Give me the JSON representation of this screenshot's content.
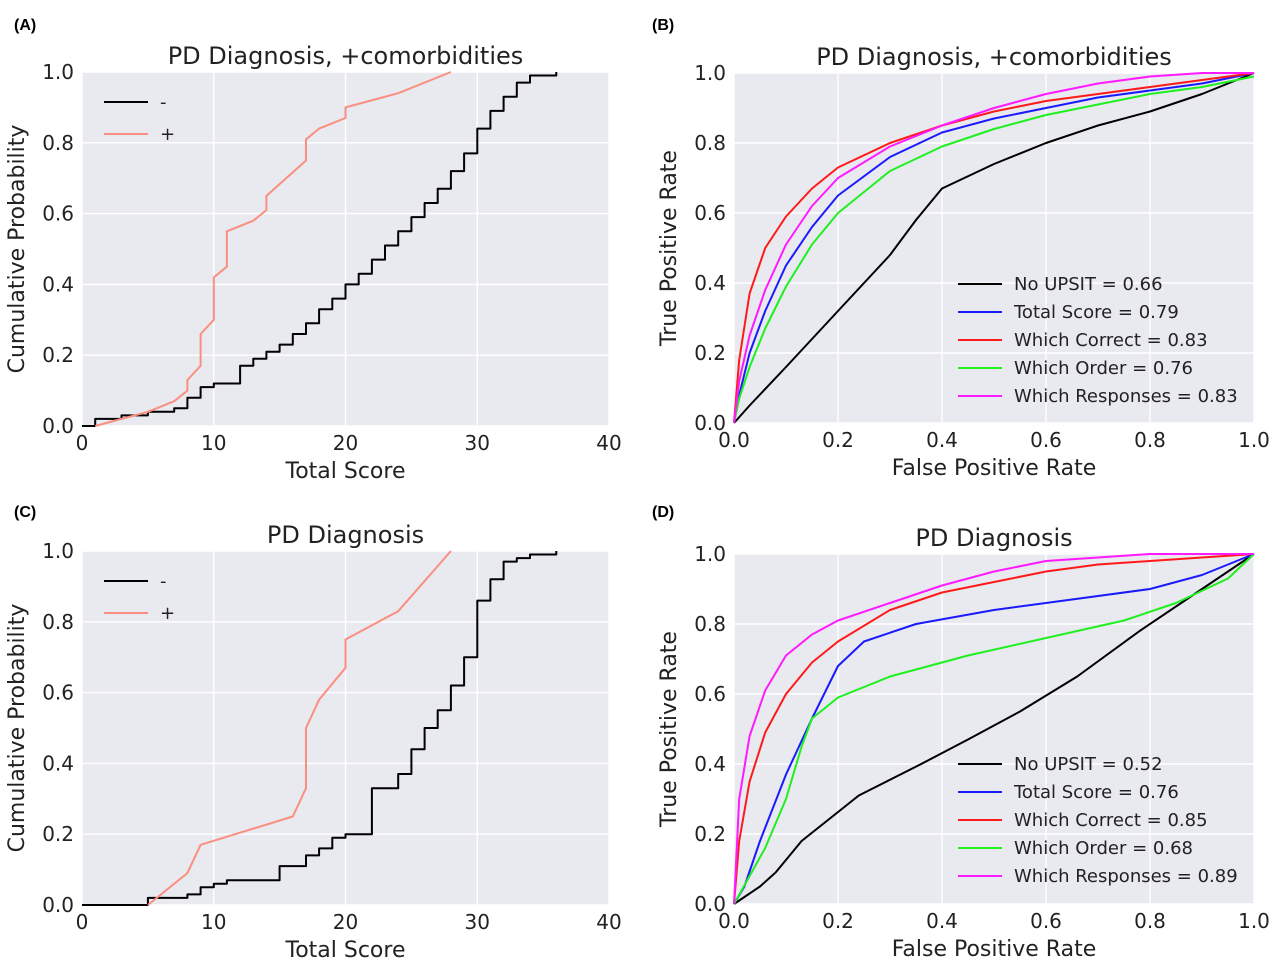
{
  "chart_data": [
    {
      "panel": "(A)",
      "type": "line",
      "step": true,
      "title": "PD Diagnosis, +comorbidities",
      "xlabel": "Total Score",
      "ylabel": "Cumulative Probability",
      "xlim": [
        0,
        40
      ],
      "ylim": [
        0,
        1
      ],
      "xticks": [
        0,
        10,
        20,
        30,
        40
      ],
      "yticks": [
        0.0,
        0.2,
        0.4,
        0.6,
        0.8,
        1.0
      ],
      "xtick_labels": [
        "0",
        "10",
        "20",
        "30",
        "40"
      ],
      "ytick_labels": [
        "0.0",
        "0.2",
        "0.4",
        "0.6",
        "0.8",
        "1.0"
      ],
      "grid": true,
      "legend": "top-left",
      "series": [
        {
          "name": "-",
          "color": "#000000",
          "step": true,
          "x": [
            0,
            1,
            3,
            5,
            7,
            8,
            9,
            10,
            12,
            12,
            13,
            14,
            15,
            16,
            17,
            18,
            19,
            20,
            21,
            22,
            23,
            24,
            25,
            26,
            27,
            28,
            29,
            30,
            31,
            32,
            33,
            34,
            36
          ],
          "y": [
            0,
            0.02,
            0.03,
            0.04,
            0.05,
            0.08,
            0.11,
            0.12,
            0.12,
            0.17,
            0.19,
            0.21,
            0.23,
            0.26,
            0.29,
            0.33,
            0.36,
            0.4,
            0.43,
            0.47,
            0.51,
            0.55,
            0.59,
            0.63,
            0.67,
            0.72,
            0.77,
            0.84,
            0.89,
            0.93,
            0.97,
            0.99,
            1.0
          ]
        },
        {
          "name": "+",
          "color": "#fa8f80",
          "step": false,
          "x": [
            1,
            3,
            5,
            7,
            8,
            8,
            9,
            9,
            10,
            10,
            11,
            11,
            13,
            14,
            14,
            17,
            17,
            18,
            20,
            20,
            24,
            28
          ],
          "y": [
            0.0,
            0.02,
            0.04,
            0.07,
            0.1,
            0.13,
            0.17,
            0.26,
            0.3,
            0.42,
            0.45,
            0.55,
            0.58,
            0.61,
            0.65,
            0.75,
            0.81,
            0.84,
            0.87,
            0.9,
            0.94,
            1.0
          ]
        }
      ]
    },
    {
      "panel": "(B)",
      "type": "line",
      "title": "PD Diagnosis, +comorbidities",
      "xlabel": "False Positive Rate",
      "ylabel": "True Positive Rate",
      "xlim": [
        0,
        1
      ],
      "ylim": [
        0,
        1
      ],
      "xticks": [
        0.0,
        0.2,
        0.4,
        0.6,
        0.8,
        1.0
      ],
      "yticks": [
        0.0,
        0.2,
        0.4,
        0.6,
        0.8,
        1.0
      ],
      "xtick_labels": [
        "0.0",
        "0.2",
        "0.4",
        "0.6",
        "0.8",
        "1.0"
      ],
      "ytick_labels": [
        "0.0",
        "0.2",
        "0.4",
        "0.6",
        "0.8",
        "1.0"
      ],
      "grid": true,
      "legend": "bottom-right",
      "series": [
        {
          "name": "No UPSIT = 0.66",
          "color": "#000000",
          "x": [
            0,
            0.03,
            0.1,
            0.2,
            0.3,
            0.35,
            0.4,
            0.5,
            0.6,
            0.7,
            0.8,
            0.9,
            1.0
          ],
          "y": [
            0,
            0.05,
            0.16,
            0.32,
            0.48,
            0.58,
            0.67,
            0.74,
            0.8,
            0.85,
            0.89,
            0.94,
            1.0
          ]
        },
        {
          "name": "Total Score = 0.79",
          "color": "#1a1aff",
          "x": [
            0,
            0.01,
            0.03,
            0.06,
            0.1,
            0.15,
            0.2,
            0.3,
            0.4,
            0.5,
            0.6,
            0.7,
            0.8,
            0.9,
            1.0
          ],
          "y": [
            0,
            0.08,
            0.2,
            0.32,
            0.45,
            0.56,
            0.65,
            0.76,
            0.83,
            0.87,
            0.9,
            0.93,
            0.95,
            0.97,
            1.0
          ]
        },
        {
          "name": "Which Correct = 0.83",
          "color": "#ff1a1a",
          "x": [
            0,
            0.01,
            0.03,
            0.06,
            0.1,
            0.15,
            0.2,
            0.3,
            0.4,
            0.5,
            0.6,
            0.7,
            0.8,
            0.9,
            1.0
          ],
          "y": [
            0,
            0.18,
            0.37,
            0.5,
            0.59,
            0.67,
            0.73,
            0.8,
            0.85,
            0.89,
            0.92,
            0.94,
            0.96,
            0.98,
            1.0
          ]
        },
        {
          "name": "Which Order = 0.76",
          "color": "#1ff01f",
          "x": [
            0,
            0.01,
            0.03,
            0.06,
            0.1,
            0.15,
            0.2,
            0.3,
            0.4,
            0.5,
            0.6,
            0.7,
            0.8,
            0.9,
            1.0
          ],
          "y": [
            0,
            0.07,
            0.16,
            0.27,
            0.39,
            0.51,
            0.6,
            0.72,
            0.79,
            0.84,
            0.88,
            0.91,
            0.94,
            0.96,
            0.99
          ]
        },
        {
          "name": "Which Responses = 0.83",
          "color": "#ff1aff",
          "x": [
            0,
            0.01,
            0.03,
            0.06,
            0.1,
            0.15,
            0.2,
            0.3,
            0.4,
            0.5,
            0.6,
            0.7,
            0.8,
            0.9,
            1.0
          ],
          "y": [
            0,
            0.12,
            0.25,
            0.38,
            0.51,
            0.62,
            0.7,
            0.79,
            0.85,
            0.9,
            0.94,
            0.97,
            0.99,
            1.0,
            1.0
          ]
        }
      ]
    },
    {
      "panel": "(C)",
      "type": "line",
      "step": true,
      "title": "PD Diagnosis",
      "xlabel": "Total Score",
      "ylabel": "Cumulative Probability",
      "xlim": [
        0,
        40
      ],
      "ylim": [
        0,
        1
      ],
      "xticks": [
        0,
        10,
        20,
        30,
        40
      ],
      "yticks": [
        0.0,
        0.2,
        0.4,
        0.6,
        0.8,
        1.0
      ],
      "xtick_labels": [
        "0",
        "10",
        "20",
        "30",
        "40"
      ],
      "ytick_labels": [
        "0.0",
        "0.2",
        "0.4",
        "0.6",
        "0.8",
        "1.0"
      ],
      "grid": true,
      "legend": "top-left",
      "series": [
        {
          "name": "-",
          "color": "#000000",
          "step": true,
          "x": [
            0,
            1,
            5,
            8,
            9,
            10,
            11,
            15,
            15,
            17,
            18,
            19,
            20,
            22,
            22,
            24,
            25,
            26,
            27,
            28,
            29,
            30,
            30,
            31,
            32,
            33,
            34,
            36
          ],
          "y": [
            0,
            0.0,
            0.02,
            0.03,
            0.05,
            0.06,
            0.07,
            0.08,
            0.11,
            0.14,
            0.16,
            0.19,
            0.2,
            0.3,
            0.33,
            0.37,
            0.44,
            0.5,
            0.55,
            0.62,
            0.7,
            0.78,
            0.86,
            0.92,
            0.97,
            0.98,
            0.99,
            1.0
          ]
        },
        {
          "name": "+",
          "color": "#fa8f80",
          "step": false,
          "x": [
            5,
            8,
            9,
            16,
            17,
            17,
            18,
            20,
            20,
            24,
            28
          ],
          "y": [
            0.0,
            0.09,
            0.17,
            0.25,
            0.33,
            0.5,
            0.58,
            0.67,
            0.75,
            0.83,
            1.0
          ]
        }
      ]
    },
    {
      "panel": "(D)",
      "type": "line",
      "title": "PD Diagnosis",
      "xlabel": "False Positive Rate",
      "ylabel": "True Positive Rate",
      "xlim": [
        0,
        1
      ],
      "ylim": [
        0,
        1
      ],
      "xticks": [
        0.0,
        0.2,
        0.4,
        0.6,
        0.8,
        1.0
      ],
      "yticks": [
        0.0,
        0.2,
        0.4,
        0.6,
        0.8,
        1.0
      ],
      "xtick_labels": [
        "0.0",
        "0.2",
        "0.4",
        "0.6",
        "0.8",
        "1.0"
      ],
      "ytick_labels": [
        "0.0",
        "0.2",
        "0.4",
        "0.6",
        "0.8",
        "1.0"
      ],
      "grid": true,
      "legend": "bottom-right",
      "series": [
        {
          "name": "No UPSIT = 0.52",
          "color": "#000000",
          "x": [
            0,
            0.02,
            0.05,
            0.08,
            0.13,
            0.24,
            0.36,
            0.45,
            0.55,
            0.66,
            0.78,
            0.9,
            1.0
          ],
          "y": [
            0,
            0.02,
            0.05,
            0.09,
            0.18,
            0.31,
            0.4,
            0.47,
            0.55,
            0.65,
            0.78,
            0.9,
            1.0
          ]
        },
        {
          "name": "Total Score = 0.76",
          "color": "#1a1aff",
          "x": [
            0,
            0.02,
            0.05,
            0.1,
            0.15,
            0.2,
            0.25,
            0.35,
            0.5,
            0.65,
            0.8,
            0.9,
            1.0
          ],
          "y": [
            0,
            0.05,
            0.18,
            0.37,
            0.53,
            0.68,
            0.75,
            0.8,
            0.84,
            0.87,
            0.9,
            0.94,
            1.0
          ]
        },
        {
          "name": "Which Correct = 0.85",
          "color": "#ff1a1a",
          "x": [
            0,
            0.01,
            0.03,
            0.06,
            0.1,
            0.15,
            0.2,
            0.3,
            0.4,
            0.5,
            0.6,
            0.7,
            0.8,
            0.9,
            1.0
          ],
          "y": [
            0,
            0.18,
            0.35,
            0.49,
            0.6,
            0.69,
            0.75,
            0.84,
            0.89,
            0.92,
            0.95,
            0.97,
            0.98,
            0.99,
            1.0
          ]
        },
        {
          "name": "Which Order = 0.68",
          "color": "#1ff01f",
          "x": [
            0,
            0.03,
            0.06,
            0.1,
            0.13,
            0.15,
            0.2,
            0.3,
            0.45,
            0.6,
            0.75,
            0.85,
            0.95,
            1.0
          ],
          "y": [
            0,
            0.08,
            0.16,
            0.3,
            0.45,
            0.53,
            0.59,
            0.65,
            0.71,
            0.76,
            0.81,
            0.86,
            0.93,
            1.0
          ]
        },
        {
          "name": "Which Responses = 0.89",
          "color": "#ff1aff",
          "x": [
            0,
            0.01,
            0.03,
            0.06,
            0.1,
            0.15,
            0.2,
            0.3,
            0.4,
            0.5,
            0.6,
            0.7,
            0.8,
            0.9,
            1.0
          ],
          "y": [
            0,
            0.3,
            0.48,
            0.61,
            0.71,
            0.77,
            0.81,
            0.86,
            0.91,
            0.95,
            0.98,
            0.99,
            1.0,
            1.0,
            1.0
          ]
        }
      ]
    }
  ]
}
